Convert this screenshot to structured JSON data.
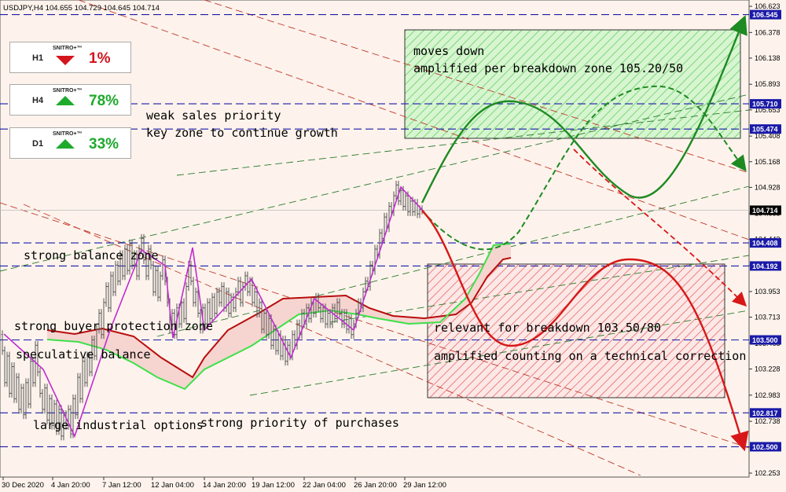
{
  "header": {
    "symbol_line": "USDJPY,H4  104.655 104.729 104.645 104.714"
  },
  "signals": [
    {
      "tf": "H1",
      "brand": "SNITRO+™",
      "direction": "down",
      "value": "1%",
      "color": "#d4141c"
    },
    {
      "tf": "H4",
      "brand": "SNITRO+™",
      "direction": "up",
      "value": "78%",
      "color": "#1eaa2c"
    },
    {
      "tf": "D1",
      "brand": "SNITRO+™",
      "direction": "up",
      "value": "33%",
      "color": "#1eaa2c"
    }
  ],
  "annotations": {
    "weak_sales": "weak sales priority",
    "key_zone": "key zone to continue growth",
    "strong_balance": "strong balance zone",
    "buyer_protection": "strong buyer protection zone",
    "speculative": "speculative balance",
    "industrial": "large industrial options",
    "strong_purchases": "strong priority of purchases",
    "moves_down": "moves down",
    "amplified_breakdown": "amplified per breakdown zone 105.20/50",
    "relevant_breakdown": "relevant for breakdown 103.50/80",
    "amplified_correction": "amplified counting on a technical correction"
  },
  "chart_data": {
    "type": "line",
    "title": "USDJPY,H4",
    "ylim": [
      102.253,
      106.623
    ],
    "y_ticks": [
      "106.623",
      "106.378",
      "106.138",
      "105.893",
      "105.653",
      "105.408",
      "105.168",
      "104.928",
      "104.683",
      "104.443",
      "104.198",
      "103.953",
      "103.713",
      "103.468",
      "103.228",
      "102.983",
      "102.738",
      "102.498",
      "102.253"
    ],
    "x_ticks": [
      "30 Dec 2020",
      "4 Jan 20:00",
      "7 Jan 12:00",
      "12 Jan 04:00",
      "14 Jan 20:00",
      "19 Jan 12:00",
      "22 Jan 04:00",
      "26 Jan 20:00",
      "29 Jan 12:00"
    ],
    "current_price": "104.714",
    "levels": [
      {
        "value": "106.545",
        "color": "#1a1aa8"
      },
      {
        "value": "105.710",
        "color": "#1a1aa8"
      },
      {
        "value": "105.474",
        "color": "#1a1aa8"
      },
      {
        "value": "104.408",
        "color": "#1a1aa8"
      },
      {
        "value": "104.192",
        "color": "#1a1aa8"
      },
      {
        "value": "103.500",
        "color": "#1a1aa8"
      },
      {
        "value": "102.817",
        "color": "#1a1aa8"
      },
      {
        "value": "102.500",
        "color": "#1a1aa8"
      }
    ],
    "price_path": [
      [
        0,
        103.55
      ],
      [
        3,
        103.4
      ],
      [
        6,
        103.1
      ],
      [
        9,
        103.35
      ],
      [
        12,
        103.0
      ],
      [
        15,
        103.25
      ],
      [
        18,
        102.95
      ],
      [
        21,
        103.15
      ],
      [
        24,
        102.85
      ],
      [
        27,
        103.05
      ],
      [
        30,
        102.8
      ],
      [
        33,
        103.1
      ],
      [
        36,
        102.9
      ],
      [
        39,
        103.3
      ],
      [
        42,
        103.1
      ],
      [
        45,
        103.45
      ],
      [
        48,
        103.2
      ],
      [
        51,
        103.0
      ],
      [
        54,
        102.85
      ],
      [
        57,
        103.05
      ],
      [
        60,
        102.75
      ],
      [
        63,
        102.95
      ],
      [
        66,
        102.7
      ],
      [
        69,
        102.9
      ],
      [
        72,
        102.65
      ],
      [
        75,
        102.85
      ],
      [
        78,
        102.6
      ],
      [
        81,
        102.8
      ],
      [
        84,
        102.7
      ],
      [
        87,
        102.85
      ],
      [
        90,
        102.62
      ],
      [
        93,
        102.95
      ],
      [
        96,
        102.8
      ],
      [
        99,
        103.15
      ],
      [
        102,
        102.95
      ],
      [
        105,
        103.3
      ],
      [
        108,
        103.1
      ],
      [
        111,
        103.35
      ],
      [
        114,
        103.2
      ],
      [
        117,
        103.5
      ],
      [
        120,
        103.35
      ],
      [
        123,
        103.6
      ],
      [
        126,
        103.75
      ],
      [
        129,
        103.55
      ],
      [
        132,
        103.85
      ],
      [
        135,
        104.0
      ],
      [
        138,
        103.8
      ],
      [
        141,
        104.1
      ],
      [
        144,
        103.95
      ],
      [
        147,
        104.2
      ],
      [
        150,
        104.05
      ],
      [
        153,
        104.3
      ],
      [
        156,
        104.1
      ],
      [
        159,
        104.35
      ],
      [
        162,
        104.15
      ],
      [
        165,
        104.4
      ],
      [
        168,
        104.2
      ],
      [
        171,
        104.3
      ],
      [
        174,
        104.1
      ],
      [
        177,
        104.35
      ],
      [
        180,
        104.45
      ],
      [
        183,
        104.25
      ],
      [
        186,
        104.1
      ],
      [
        189,
        104.35
      ],
      [
        192,
        104.2
      ],
      [
        195,
        103.95
      ],
      [
        198,
        104.15
      ],
      [
        201,
        103.9
      ],
      [
        204,
        104.1
      ],
      [
        207,
        104.25
      ],
      [
        210,
        104.05
      ],
      [
        213,
        103.85
      ],
      [
        216,
        103.6
      ],
      [
        219,
        103.75
      ],
      [
        222,
        103.55
      ],
      [
        225,
        103.8
      ],
      [
        228,
        103.65
      ],
      [
        231,
        103.85
      ],
      [
        234,
        103.7
      ],
      [
        237,
        104.0
      ],
      [
        240,
        104.2
      ],
      [
        243,
        104.05
      ],
      [
        246,
        103.85
      ],
      [
        249,
        103.95
      ],
      [
        252,
        103.75
      ],
      [
        255,
        103.6
      ],
      [
        258,
        103.8
      ],
      [
        261,
        103.65
      ],
      [
        264,
        103.85
      ],
      [
        267,
        103.7
      ],
      [
        270,
        103.9
      ],
      [
        273,
        103.75
      ],
      [
        276,
        103.95
      ],
      [
        279,
        103.85
      ],
      [
        282,
        104.0
      ],
      [
        285,
        103.8
      ],
      [
        288,
        103.95
      ],
      [
        291,
        103.75
      ],
      [
        294,
        103.9
      ],
      [
        297,
        103.8
      ],
      [
        300,
        103.95
      ],
      [
        303,
        104.05
      ],
      [
        306,
        103.85
      ],
      [
        309,
        104.0
      ],
      [
        312,
        104.1
      ],
      [
        315,
        103.95
      ],
      [
        318,
        104.05
      ],
      [
        321,
        103.85
      ],
      [
        324,
        103.95
      ],
      [
        327,
        103.75
      ],
      [
        330,
        103.85
      ],
      [
        333,
        103.6
      ],
      [
        336,
        103.75
      ],
      [
        339,
        103.55
      ],
      [
        342,
        103.7
      ],
      [
        345,
        103.45
      ],
      [
        348,
        103.6
      ],
      [
        351,
        103.4
      ],
      [
        354,
        103.55
      ],
      [
        357,
        103.35
      ],
      [
        360,
        103.5
      ],
      [
        363,
        103.3
      ],
      [
        366,
        103.45
      ],
      [
        369,
        103.35
      ],
      [
        372,
        103.55
      ],
      [
        375,
        103.45
      ],
      [
        378,
        103.65
      ],
      [
        381,
        103.55
      ],
      [
        384,
        103.75
      ],
      [
        387,
        103.65
      ],
      [
        390,
        103.8
      ],
      [
        393,
        103.7
      ],
      [
        396,
        103.85
      ],
      [
        399,
        103.75
      ],
      [
        402,
        103.9
      ],
      [
        405,
        103.8
      ],
      [
        408,
        103.7
      ],
      [
        411,
        103.8
      ],
      [
        414,
        103.65
      ],
      [
        417,
        103.75
      ],
      [
        420,
        103.65
      ],
      [
        423,
        103.8
      ],
      [
        426,
        103.7
      ],
      [
        429,
        103.85
      ],
      [
        432,
        103.75
      ],
      [
        435,
        103.65
      ],
      [
        438,
        103.75
      ],
      [
        441,
        103.6
      ],
      [
        444,
        103.7
      ],
      [
        447,
        103.55
      ],
      [
        450,
        103.65
      ],
      [
        453,
        103.75
      ],
      [
        456,
        103.85
      ],
      [
        459,
        103.8
      ],
      [
        462,
        103.95
      ],
      [
        465,
        104.05
      ],
      [
        468,
        104.0
      ],
      [
        471,
        104.2
      ],
      [
        474,
        104.15
      ],
      [
        477,
        104.35
      ],
      [
        480,
        104.3
      ],
      [
        483,
        104.5
      ],
      [
        486,
        104.45
      ],
      [
        489,
        104.65
      ],
      [
        492,
        104.55
      ],
      [
        495,
        104.75
      ],
      [
        498,
        104.7
      ],
      [
        501,
        104.85
      ],
      [
        504,
        104.95
      ],
      [
        507,
        104.8
      ],
      [
        510,
        104.9
      ],
      [
        513,
        104.75
      ],
      [
        516,
        104.85
      ],
      [
        519,
        104.7
      ],
      [
        522,
        104.8
      ],
      [
        525,
        104.7
      ],
      [
        528,
        104.78
      ],
      [
        531,
        104.68
      ],
      [
        534,
        104.72
      ],
      [
        537,
        104.714
      ]
    ]
  }
}
